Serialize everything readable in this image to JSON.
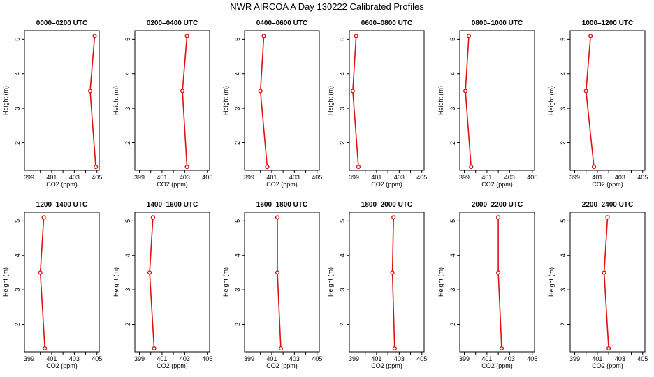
{
  "page": {
    "title": "NWR AIRCOA A  Day 130222  Calibrated Profiles"
  },
  "chart_data": {
    "type": "line",
    "shared": {
      "xlabel": "CO2 (ppm)",
      "ylabel": "Height (m)",
      "xlim": [
        398.6,
        405.2
      ],
      "ylim": [
        1.2,
        5.25
      ],
      "xticks": [
        399,
        400,
        401,
        402,
        403,
        404,
        405
      ],
      "xtick_labels": [
        "399",
        "",
        "401",
        "",
        "403",
        "",
        "405"
      ],
      "yticks": [
        2,
        3,
        4,
        5
      ],
      "ytick_labels": [
        "2",
        "3",
        "4",
        "5"
      ],
      "heights": [
        5.1,
        3.5,
        1.3
      ],
      "line_color": "#e01010"
    },
    "panels": [
      {
        "title": "0000–0200 UTC",
        "co2": [
          404.8,
          404.4,
          404.9
        ]
      },
      {
        "title": "0200–0400 UTC",
        "co2": [
          403.2,
          402.8,
          403.2
        ]
      },
      {
        "title": "0400–0600 UTC",
        "co2": [
          400.3,
          400.0,
          400.6
        ]
      },
      {
        "title": "0600–0800 UTC",
        "co2": [
          399.2,
          398.9,
          399.4
        ]
      },
      {
        "title": "0800–1000 UTC",
        "co2": [
          399.4,
          399.1,
          399.6
        ]
      },
      {
        "title": "1000–1200 UTC",
        "co2": [
          400.4,
          400.0,
          400.7
        ]
      },
      {
        "title": "1200–1400 UTC",
        "co2": [
          400.3,
          400.0,
          400.4
        ]
      },
      {
        "title": "1400–1600 UTC",
        "co2": [
          400.2,
          399.9,
          400.3
        ]
      },
      {
        "title": "1600–1800 UTC",
        "co2": [
          401.5,
          401.5,
          401.8
        ]
      },
      {
        "title": "1800–2000 UTC",
        "co2": [
          402.5,
          402.4,
          402.6
        ]
      },
      {
        "title": "2000–2200 UTC",
        "co2": [
          402.0,
          402.0,
          402.3
        ]
      },
      {
        "title": "2200–2400 UTC",
        "co2": [
          401.9,
          401.6,
          402.0
        ]
      }
    ]
  }
}
